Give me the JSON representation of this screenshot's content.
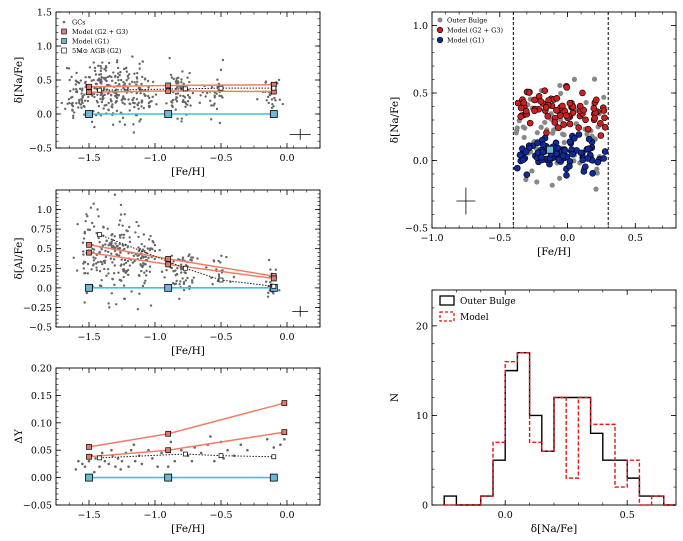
{
  "chart_data": [
    {
      "id": "na_fe",
      "type": "scatter",
      "xlabel": "[Fe/H]",
      "ylabel": "δ[Na/Fe]",
      "xlim": [
        -1.75,
        0.25
      ],
      "ylim": [
        -0.5,
        1.5
      ],
      "xticks": [
        -1.5,
        -1.0,
        -0.5,
        0.0
      ],
      "xtick_labels": [
        "−1.5",
        "−1.0",
        "−0.5",
        "0.0"
      ],
      "yticks": [
        -0.5,
        0.0,
        0.5,
        1.0,
        1.5
      ],
      "ytick_labels": [
        "−0.5",
        "0.0",
        "0.5",
        "1.0",
        "1.5"
      ],
      "legend": [
        "GCs",
        "Model (G2 + G3)",
        "Model (G1)",
        "5M⊙ AGB (G2)"
      ],
      "legend_position": "top-left",
      "gc_clumps": [
        {
          "x": -1.58,
          "sx": 0.05,
          "y": 0.32,
          "sy": 0.22,
          "n": 60
        },
        {
          "x": -1.35,
          "sx": 0.1,
          "y": 0.35,
          "sy": 0.22,
          "n": 180
        },
        {
          "x": -1.12,
          "sx": 0.06,
          "y": 0.33,
          "sy": 0.2,
          "n": 70
        },
        {
          "x": -0.8,
          "sx": 0.05,
          "y": 0.3,
          "sy": 0.18,
          "n": 70
        },
        {
          "x": -0.55,
          "sx": 0.05,
          "y": 0.32,
          "sy": 0.18,
          "n": 30
        },
        {
          "x": -0.12,
          "sx": 0.04,
          "y": 0.32,
          "sy": 0.14,
          "n": 30
        }
      ],
      "series": [
        {
          "name": "Model (G2 + G3) upper",
          "x": [
            -1.5,
            -0.9,
            -0.1
          ],
          "y": [
            0.4,
            0.42,
            0.43
          ]
        },
        {
          "name": "Model (G2 + G3) lower",
          "x": [
            -1.5,
            -0.9,
            -0.1
          ],
          "y": [
            0.32,
            0.34,
            0.33
          ]
        },
        {
          "name": "Model (G1)",
          "x": [
            -1.5,
            -0.9,
            -0.1
          ],
          "y": [
            0.0,
            0.0,
            0.0
          ]
        },
        {
          "name": "5M⊙ AGB (G2)",
          "x": [
            -1.42,
            -0.77,
            -0.5,
            -0.1
          ],
          "y": [
            0.35,
            0.37,
            0.38,
            0.38
          ]
        }
      ],
      "errorbar": {
        "x": 0.1,
        "y": -0.3,
        "xerr": 0.08,
        "yerr": 0.08
      }
    },
    {
      "id": "al_fe",
      "type": "scatter",
      "xlabel": "[Fe/H]",
      "ylabel": "δ[Al/Fe]",
      "xlim": [
        -1.75,
        0.25
      ],
      "ylim": [
        -0.5,
        1.25
      ],
      "xticks": [
        -1.5,
        -1.0,
        -0.5,
        0.0
      ],
      "xtick_labels": [
        "−1.5",
        "−1.0",
        "−0.5",
        "0.0"
      ],
      "yticks": [
        -0.5,
        -0.25,
        0.0,
        0.25,
        0.5,
        0.75,
        1.0
      ],
      "ytick_labels": [
        "−0.5",
        "−0.25",
        "0.0",
        "0.25",
        "0.5",
        "0.75",
        "1.0"
      ],
      "gc_clumps": [
        {
          "x": -1.48,
          "sx": 0.05,
          "y": 0.45,
          "sy": 0.25,
          "n": 60
        },
        {
          "x": -1.3,
          "sx": 0.08,
          "y": 0.42,
          "sy": 0.25,
          "n": 120
        },
        {
          "x": -1.1,
          "sx": 0.06,
          "y": 0.38,
          "sy": 0.22,
          "n": 70
        },
        {
          "x": -0.8,
          "sx": 0.05,
          "y": 0.22,
          "sy": 0.15,
          "n": 60
        },
        {
          "x": -0.52,
          "sx": 0.05,
          "y": 0.18,
          "sy": 0.12,
          "n": 20
        },
        {
          "x": -0.12,
          "sx": 0.04,
          "y": 0.08,
          "sy": 0.1,
          "n": 20
        }
      ],
      "series": [
        {
          "name": "Model (G2 + G3) upper",
          "x": [
            -1.5,
            -0.9,
            -0.1
          ],
          "y": [
            0.55,
            0.37,
            0.15
          ]
        },
        {
          "name": "Model (G2 + G3) lower",
          "x": [
            -1.5,
            -0.9,
            -0.1
          ],
          "y": [
            0.45,
            0.3,
            0.12
          ]
        },
        {
          "name": "Model (G1)",
          "x": [
            -1.5,
            -0.9,
            -0.1
          ],
          "y": [
            0.0,
            0.0,
            0.0
          ]
        },
        {
          "name": "5M⊙ AGB (G2)",
          "x": [
            -1.42,
            -0.77,
            -0.5,
            -0.1
          ],
          "y": [
            0.68,
            0.25,
            0.1,
            0.02
          ]
        }
      ],
      "errorbar": {
        "x": 0.1,
        "y": -0.3,
        "xerr": 0.06,
        "yerr": 0.07
      }
    },
    {
      "id": "delta_y",
      "type": "scatter",
      "xlabel": "[Fe/H]",
      "ylabel": "ΔY",
      "xlim": [
        -1.75,
        0.25
      ],
      "ylim": [
        -0.05,
        0.2
      ],
      "xticks": [
        -1.5,
        -1.0,
        -0.5,
        0.0
      ],
      "xtick_labels": [
        "−1.5",
        "−1.0",
        "−0.5",
        "0.0"
      ],
      "yticks": [
        -0.05,
        0.0,
        0.05,
        0.1,
        0.15,
        0.2
      ],
      "ytick_labels": [
        "−0.05",
        "0.00",
        "0.05",
        "0.10",
        "0.15",
        "0.20"
      ],
      "gc_points": [
        {
          "x": -1.58,
          "y": 0.03
        },
        {
          "x": -1.55,
          "y": 0.025
        },
        {
          "x": -1.53,
          "y": 0.02
        },
        {
          "x": -1.5,
          "y": 0.03
        },
        {
          "x": -1.48,
          "y": 0.04
        },
        {
          "x": -1.45,
          "y": 0.035
        },
        {
          "x": -1.42,
          "y": 0.02
        },
        {
          "x": -1.4,
          "y": 0.045
        },
        {
          "x": -1.38,
          "y": 0.03
        },
        {
          "x": -1.35,
          "y": 0.025
        },
        {
          "x": -1.32,
          "y": 0.04
        },
        {
          "x": -1.3,
          "y": 0.02
        },
        {
          "x": -1.28,
          "y": 0.035
        },
        {
          "x": -1.25,
          "y": 0.03
        },
        {
          "x": -1.22,
          "y": 0.045
        },
        {
          "x": -1.2,
          "y": 0.02
        },
        {
          "x": -1.18,
          "y": 0.05
        },
        {
          "x": -1.15,
          "y": 0.03
        },
        {
          "x": -1.12,
          "y": 0.04
        },
        {
          "x": -1.1,
          "y": 0.025
        },
        {
          "x": -1.05,
          "y": 0.05
        },
        {
          "x": -1.02,
          "y": 0.035
        },
        {
          "x": -0.95,
          "y": 0.045
        },
        {
          "x": -0.9,
          "y": 0.02
        },
        {
          "x": -0.85,
          "y": 0.03
        },
        {
          "x": -0.8,
          "y": 0.05
        },
        {
          "x": -0.75,
          "y": 0.04
        },
        {
          "x": -0.7,
          "y": 0.055
        },
        {
          "x": -0.65,
          "y": 0.045
        },
        {
          "x": -0.6,
          "y": 0.06
        },
        {
          "x": -0.55,
          "y": 0.03
        },
        {
          "x": -0.5,
          "y": 0.065
        },
        {
          "x": -0.45,
          "y": 0.05
        },
        {
          "x": -0.4,
          "y": 0.04
        },
        {
          "x": -0.35,
          "y": 0.06
        },
        {
          "x": -0.15,
          "y": 0.07
        },
        {
          "x": -0.1,
          "y": 0.055
        },
        {
          "x": -0.05,
          "y": 0.06
        },
        {
          "x": -0.02,
          "y": 0.07
        },
        {
          "x": -1.6,
          "y": 0.015
        },
        {
          "x": -1.46,
          "y": 0.01
        },
        {
          "x": -1.33,
          "y": 0.05
        },
        {
          "x": -1.26,
          "y": 0.015
        },
        {
          "x": -1.16,
          "y": 0.06
        },
        {
          "x": -0.98,
          "y": 0.02
        },
        {
          "x": -0.88,
          "y": 0.065
        },
        {
          "x": -0.72,
          "y": 0.03
        },
        {
          "x": -0.58,
          "y": 0.075
        },
        {
          "x": -0.48,
          "y": 0.035
        },
        {
          "x": -0.3,
          "y": 0.05
        }
      ],
      "series": [
        {
          "name": "Model (G2 + G3) upper",
          "x": [
            -1.5,
            -0.9,
            -0.02
          ],
          "y": [
            0.056,
            0.08,
            0.136
          ]
        },
        {
          "name": "Model (G2 + G3) lower",
          "x": [
            -1.5,
            -0.9,
            -0.02
          ],
          "y": [
            0.038,
            0.05,
            0.083
          ]
        },
        {
          "name": "Model (G1)",
          "x": [
            -1.5,
            -0.9,
            -0.1
          ],
          "y": [
            0.0,
            0.0,
            0.0
          ]
        },
        {
          "name": "5M⊙ AGB (G2)",
          "x": [
            -1.42,
            -0.77,
            -0.5,
            -0.1
          ],
          "y": [
            0.036,
            0.043,
            0.04,
            0.038
          ]
        }
      ]
    },
    {
      "id": "bulge_na",
      "type": "scatter",
      "xlabel": "[Fe/H]",
      "ylabel": "δ[Na/Fe]",
      "xlim": [
        -1.0,
        0.8
      ],
      "ylim": [
        -0.5,
        1.1
      ],
      "xticks": [
        -1.0,
        -0.5,
        0.0,
        0.5
      ],
      "xtick_labels": [
        "−1.0",
        "−0.5",
        "0.0",
        "0.5"
      ],
      "yticks": [
        -0.5,
        0.0,
        0.5,
        1.0
      ],
      "ytick_labels": [
        "−0.5",
        "0.0",
        "0.5",
        "1.0"
      ],
      "legend": [
        "Outer Bulge",
        "Model (G2 + G3)",
        "Model (G1)"
      ],
      "legend_position": "top-left",
      "vlines": [
        -0.4,
        0.3
      ],
      "outer_bulge": {
        "x_range": [
          -0.38,
          0.28
        ],
        "y_mean": 0.2,
        "y_sd": 0.18,
        "n": 90
      },
      "model_g23": {
        "x_range": [
          -0.38,
          0.28
        ],
        "y_mean": 0.38,
        "y_sd": 0.08,
        "n": 80
      },
      "model_g1": {
        "x_range": [
          -0.38,
          0.28
        ],
        "y_mean": 0.05,
        "y_sd": 0.06,
        "n": 90
      },
      "square": {
        "x": -0.13,
        "y": 0.08
      },
      "errorbar": {
        "x": -0.75,
        "y": -0.3,
        "xerr": 0.07,
        "yerr": 0.1
      }
    },
    {
      "id": "hist",
      "type": "bar",
      "xlabel": "δ[Na/Fe]",
      "ylabel": "N",
      "xlim": [
        -0.3,
        0.7
      ],
      "ylim": [
        0,
        24
      ],
      "xticks": [
        0.0,
        0.5
      ],
      "xtick_labels": [
        "0.0",
        "0.5"
      ],
      "yticks": [
        0,
        10,
        20
      ],
      "ytick_labels": [
        "0",
        "10",
        "20"
      ],
      "legend": [
        "Outer Bulge",
        "Model"
      ],
      "legend_position": "top-left",
      "bin_edges": [
        -0.25,
        -0.2,
        -0.15,
        -0.1,
        -0.05,
        0.0,
        0.05,
        0.1,
        0.15,
        0.2,
        0.25,
        0.3,
        0.35,
        0.4,
        0.45,
        0.5,
        0.55,
        0.6,
        0.65,
        0.7
      ],
      "series": [
        {
          "name": "Outer Bulge",
          "values": [
            1,
            0,
            0,
            1,
            5,
            15,
            17,
            10,
            6,
            12,
            12,
            12,
            8,
            5,
            5,
            3,
            1,
            1,
            0
          ]
        },
        {
          "name": "Model",
          "values": [
            0,
            0,
            0,
            1,
            7,
            16,
            17,
            7,
            6,
            12,
            3,
            12,
            9,
            9,
            2,
            5,
            0,
            1,
            0
          ]
        }
      ]
    }
  ],
  "colors": {
    "gc": "#666666",
    "model_g23_fill": "#e07b6e",
    "model_g23_line": "#f07f68",
    "model_g1_fill": "#6cb8d5",
    "model_g1_line": "#3cc0ea",
    "agb": "#222222",
    "bulge": "#888888",
    "bulge_red": "#cc1f1f",
    "bulge_blue": "#102a9a",
    "hist_obs": "#000000",
    "hist_model": "#e01818"
  }
}
